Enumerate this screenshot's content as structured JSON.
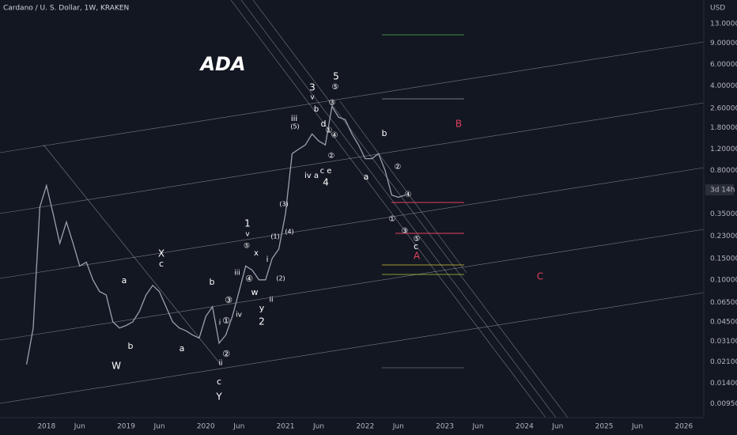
{
  "chart_data": {
    "type": "line",
    "title": "Cardano / U. S. Dollar, 1W, KRAKEN",
    "currency_label": "USD",
    "countdown_label": "3d 14h",
    "log_scale": true,
    "grid": false,
    "color": "#9aa0ad",
    "xlim": [
      "2017-06",
      "2026-04"
    ],
    "xticks": [
      {
        "value": "2018-01",
        "label": "2018"
      },
      {
        "value": "2018-06",
        "label": "Jun"
      },
      {
        "value": "2019-01",
        "label": "2019"
      },
      {
        "value": "2019-06",
        "label": "Jun"
      },
      {
        "value": "2020-01",
        "label": "2020"
      },
      {
        "value": "2020-06",
        "label": "Jun"
      },
      {
        "value": "2021-01",
        "label": "2021"
      },
      {
        "value": "2021-06",
        "label": "Jun"
      },
      {
        "value": "2022-01",
        "label": "2022"
      },
      {
        "value": "2022-06",
        "label": "Jun"
      },
      {
        "value": "2023-01",
        "label": "2023"
      },
      {
        "value": "2023-06",
        "label": "Jun"
      },
      {
        "value": "2024-01",
        "label": "2024"
      },
      {
        "value": "2024-06",
        "label": "Jun"
      },
      {
        "value": "2025-01",
        "label": "2025"
      },
      {
        "value": "2025-06",
        "label": "Jun"
      },
      {
        "value": "2026-01",
        "label": "2026"
      }
    ],
    "ylim": [
      0.0074,
      20.4
    ],
    "yticks": [
      {
        "value": 13,
        "label": "13.000000"
      },
      {
        "value": 9,
        "label": "9.000000"
      },
      {
        "value": 6,
        "label": "6.000000"
      },
      {
        "value": 4,
        "label": "4.000000"
      },
      {
        "value": 2.6,
        "label": "2.600000"
      },
      {
        "value": 1.8,
        "label": "1.800000"
      },
      {
        "value": 1.2,
        "label": "1.200000"
      },
      {
        "value": 0.8,
        "label": "0.800000"
      },
      {
        "value": 0.35,
        "label": "0.350000"
      },
      {
        "value": 0.23,
        "label": "0.230000"
      },
      {
        "value": 0.15,
        "label": "0.150000"
      },
      {
        "value": 0.1,
        "label": "0.100000"
      },
      {
        "value": 0.065,
        "label": "0.065000"
      },
      {
        "value": 0.045,
        "label": "0.045000"
      },
      {
        "value": 0.031,
        "label": "0.031000"
      },
      {
        "value": 0.021,
        "label": "0.021000"
      },
      {
        "value": 0.014,
        "label": "0.014000"
      },
      {
        "value": 0.0095,
        "label": "0.009500"
      }
    ],
    "series": [
      {
        "name": "ADA/USD",
        "color": "#9aa0ad",
        "x": [
          "2017-10",
          "2017-11",
          "2017-12",
          "2018-01",
          "2018-02",
          "2018-03",
          "2018-04",
          "2018-05",
          "2018-06",
          "2018-07",
          "2018-08",
          "2018-09",
          "2018-10",
          "2018-11",
          "2018-12",
          "2019-01",
          "2019-02",
          "2019-03",
          "2019-04",
          "2019-05",
          "2019-06",
          "2019-07",
          "2019-08",
          "2019-09",
          "2019-10",
          "2019-11",
          "2019-12",
          "2020-01",
          "2020-02",
          "2020-03",
          "2020-04",
          "2020-05",
          "2020-06",
          "2020-07",
          "2020-08",
          "2020-09",
          "2020-10",
          "2020-11",
          "2020-12",
          "2021-01",
          "2021-02",
          "2021-03",
          "2021-04",
          "2021-05",
          "2021-06",
          "2021-07",
          "2021-08",
          "2021-09",
          "2021-10",
          "2021-11",
          "2021-12",
          "2022-01",
          "2022-02",
          "2022-03",
          "2022-04",
          "2022-05",
          "2022-06",
          "2022-07"
        ],
        "values": [
          0.02,
          0.04,
          0.4,
          0.6,
          0.35,
          0.2,
          0.3,
          0.2,
          0.13,
          0.14,
          0.1,
          0.08,
          0.075,
          0.045,
          0.04,
          0.042,
          0.045,
          0.055,
          0.075,
          0.09,
          0.08,
          0.06,
          0.045,
          0.04,
          0.038,
          0.035,
          0.033,
          0.05,
          0.06,
          0.03,
          0.035,
          0.05,
          0.08,
          0.13,
          0.12,
          0.1,
          0.1,
          0.15,
          0.18,
          0.35,
          1.1,
          1.2,
          1.3,
          1.6,
          1.4,
          1.3,
          2.7,
          2.2,
          2.1,
          1.6,
          1.3,
          1.0,
          1.0,
          1.1,
          0.8,
          0.5,
          0.48,
          0.5
        ]
      }
    ],
    "annotations": [
      {
        "text": "ADA",
        "color": "#ffffff"
      },
      {
        "text": "W",
        "color": "#ffffff"
      },
      {
        "text": "b",
        "color": "#ffffff"
      },
      {
        "text": "a",
        "color": "#ffffff"
      },
      {
        "text": "X",
        "color": "#ffffff"
      },
      {
        "text": "c",
        "color": "#ffffff"
      },
      {
        "text": "a",
        "color": "#ffffff"
      },
      {
        "text": "b",
        "color": "#ffffff"
      },
      {
        "text": "c",
        "color": "#ffffff"
      },
      {
        "text": "Y",
        "color": "#ffffff"
      },
      {
        "text": "ii",
        "color": "#ffffff"
      },
      {
        "text": "②",
        "color": "#ffffff"
      },
      {
        "text": "①",
        "color": "#ffffff"
      },
      {
        "text": "i",
        "color": "#ffffff"
      },
      {
        "text": "③",
        "color": "#ffffff"
      },
      {
        "text": "iv",
        "color": "#ffffff"
      },
      {
        "text": "iii",
        "color": "#ffffff"
      },
      {
        "text": "⑤",
        "color": "#ffffff"
      },
      {
        "text": "1",
        "color": "#ffffff"
      },
      {
        "text": "v",
        "color": "#ffffff"
      },
      {
        "text": "x",
        "color": "#ffffff"
      },
      {
        "text": "④",
        "color": "#ffffff"
      },
      {
        "text": "w",
        "color": "#ffffff"
      },
      {
        "text": "y",
        "color": "#ffffff"
      },
      {
        "text": "2",
        "color": "#ffffff"
      },
      {
        "text": "ii",
        "color": "#ffffff"
      },
      {
        "text": "i",
        "color": "#ffffff"
      },
      {
        "text": "(1)",
        "color": "#ffffff"
      },
      {
        "text": "(2)",
        "color": "#ffffff"
      },
      {
        "text": "(3)",
        "color": "#ffffff"
      },
      {
        "text": "(4)",
        "color": "#ffffff"
      },
      {
        "text": "iii",
        "color": "#ffffff"
      },
      {
        "text": "(5)",
        "color": "#ffffff"
      },
      {
        "text": "iv a",
        "color": "#ffffff"
      },
      {
        "text": "c e",
        "color": "#ffffff"
      },
      {
        "text": "4",
        "color": "#ffffff"
      },
      {
        "text": "3",
        "color": "#ffffff"
      },
      {
        "text": "v",
        "color": "#ffffff"
      },
      {
        "text": "b",
        "color": "#ffffff"
      },
      {
        "text": "5",
        "color": "#ffffff"
      },
      {
        "text": "⑤",
        "color": "#ffffff"
      },
      {
        "text": "③",
        "color": "#ffffff"
      },
      {
        "text": "d",
        "color": "#ffffff"
      },
      {
        "text": "①",
        "color": "#ffffff"
      },
      {
        "text": "④",
        "color": "#ffffff"
      },
      {
        "text": "②",
        "color": "#ffffff"
      },
      {
        "text": "a",
        "color": "#ffffff"
      },
      {
        "text": "b",
        "color": "#ffffff"
      },
      {
        "text": "②",
        "color": "#ffffff"
      },
      {
        "text": "④",
        "color": "#ffffff"
      },
      {
        "text": "①",
        "color": "#ffffff"
      },
      {
        "text": "③",
        "color": "#ffffff"
      },
      {
        "text": "⑤",
        "color": "#ffffff"
      },
      {
        "text": "c",
        "color": "#ffffff"
      },
      {
        "text": "A",
        "color": "#e0405e"
      },
      {
        "text": "B",
        "color": "#e0405e"
      },
      {
        "text": "C",
        "color": "#e0405e"
      }
    ]
  }
}
